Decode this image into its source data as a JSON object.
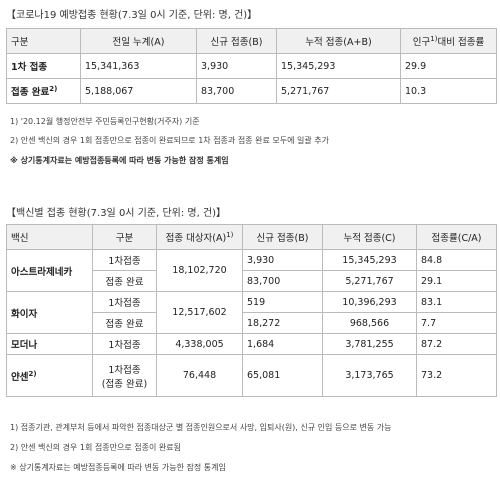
{
  "status_table": {
    "title": "【코로나19 예방접종 현황(7.3일 0시 기준, 단위: 명, 건)】",
    "header": [
      "구분",
      "전일 누계(A)",
      "신규 접종(B)",
      "누적 접종(A+B)"
    ],
    "header_last": {
      "before": "인구",
      "sup": "1)",
      "after": "대비 접종률"
    },
    "rows": [
      {
        "label": "1차 접종",
        "values": [
          "15,341,363",
          "3,930",
          "15,345,293",
          "29.9"
        ]
      },
      {
        "label": "접종 완료",
        "sup": "2)",
        "values": [
          "5,188,067",
          "83,700",
          "5,271,767",
          "10.3"
        ]
      }
    ],
    "notes": [
      "1) '20.12월 행정안전부 주민등록인구현황(거주자) 기준",
      "2) 안센 백신의 경우 1회 접종만으로 접종이 완료되므로 1차 접종과 접종 완료 모두에 일괄 추가",
      "※ 상기통계자료는 예방접종등록에 따라 변동 가능한 잠정 통계임"
    ]
  },
  "vaccine_table": {
    "title": "【백신별 접종 현황(7.3일 0시 기준, 단위: 명, 건)】",
    "header": [
      "백신",
      "구분",
      "접종 대상자(A)",
      "신규 접종(B)",
      "누적 접종(C)",
      "접종률(C/A)"
    ],
    "header_sup": "1)",
    "rows": [
      {
        "vaccine": "아스트라제네카",
        "target": "18,102,720",
        "doses": [
          {
            "kind": "1차접종",
            "new": "3,930",
            "total": "15,345,293",
            "rate": "84.8"
          },
          {
            "kind": "접종 완료",
            "new": "83,700",
            "total": "5,271,767",
            "rate": "29.1"
          }
        ]
      },
      {
        "vaccine": "화이자",
        "target": "12,517,602",
        "doses": [
          {
            "kind": "1차접종",
            "new": "519",
            "total": "10,396,293",
            "rate": "83.1"
          },
          {
            "kind": "접종 완료",
            "new": "18,272",
            "total": "968,566",
            "rate": "7.7"
          }
        ]
      },
      {
        "vaccine": "모더나",
        "target": "4,338,005",
        "doses": [
          {
            "kind": "1차접종",
            "new": "1,684",
            "total": "3,781,255",
            "rate": "87.2"
          }
        ]
      },
      {
        "vaccine": "얀센",
        "vaccine_sup": "2)",
        "target": "76,448",
        "doses": [
          {
            "kind": "1차접종",
            "kind2": "(접종 완료)",
            "new": "65,081",
            "total": "3,173,765",
            "rate": "73.2"
          }
        ]
      }
    ],
    "notes": [
      "1) 접종기관, 관계부처 등에서 파악한 접종대상군 별 접종인원으로서 사망, 입퇴사(원), 신규 인입 등으로 변동 가능",
      "2) 안센 백신의 경우 1회 접종만으로 접종이 완료됨",
      "※ 상기통계자료는 예방접종등록에 따라 변동 가능한 잠정 통계임"
    ]
  }
}
